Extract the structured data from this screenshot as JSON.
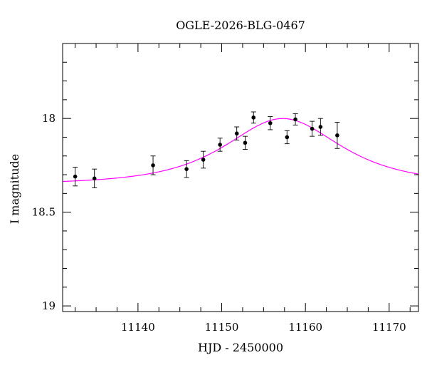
{
  "chart_data": {
    "type": "scatter",
    "title": "OGLE-2026-BLG-0467",
    "xlabel": "HJD - 2450000",
    "ylabel": "I magnitude",
    "xlim": [
      11131,
      11173.5
    ],
    "ylim": [
      19.03,
      17.6
    ],
    "y_inverted": true,
    "x_ticks": [
      11140,
      11150,
      11160,
      11170
    ],
    "x_tick_labels": [
      "11140",
      "11150",
      "11160",
      "11170"
    ],
    "y_ticks": [
      18,
      18.5,
      19
    ],
    "y_tick_labels": [
      "18",
      "18.5",
      "19"
    ],
    "grid": false,
    "series": [
      {
        "kind": "points_with_errorbars",
        "color": "#000000",
        "points": [
          {
            "x": 11132.5,
            "y": 18.31,
            "err": 0.05
          },
          {
            "x": 11134.8,
            "y": 18.32,
            "err": 0.05
          },
          {
            "x": 11141.8,
            "y": 18.25,
            "err": 0.05
          },
          {
            "x": 11145.8,
            "y": 18.27,
            "err": 0.045
          },
          {
            "x": 11147.8,
            "y": 18.22,
            "err": 0.045
          },
          {
            "x": 11149.8,
            "y": 18.14,
            "err": 0.035
          },
          {
            "x": 11151.8,
            "y": 18.08,
            "err": 0.035
          },
          {
            "x": 11152.8,
            "y": 18.13,
            "err": 0.035
          },
          {
            "x": 11153.8,
            "y": 17.995,
            "err": 0.03
          },
          {
            "x": 11155.8,
            "y": 18.025,
            "err": 0.035
          },
          {
            "x": 11157.8,
            "y": 18.1,
            "err": 0.035
          },
          {
            "x": 11158.8,
            "y": 18.005,
            "err": 0.03
          },
          {
            "x": 11160.8,
            "y": 18.055,
            "err": 0.04
          },
          {
            "x": 11161.8,
            "y": 18.045,
            "err": 0.045
          },
          {
            "x": 11163.8,
            "y": 18.09,
            "err": 0.07
          }
        ]
      },
      {
        "kind": "model_curve",
        "color": "#ff00ff",
        "model": {
          "t0": 11157.3,
          "tE": 8.5,
          "u0": 0.95,
          "baseline": 18.35
        }
      }
    ]
  }
}
